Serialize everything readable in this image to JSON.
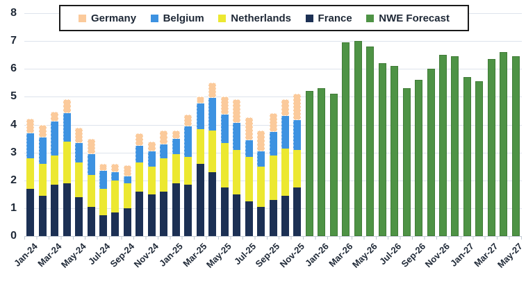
{
  "chart_data": {
    "type": "bar",
    "stacked": true,
    "title": "",
    "xlabel": "",
    "ylabel": "",
    "ylim": [
      0,
      8
    ],
    "yticks": [
      0,
      1,
      2,
      3,
      4,
      5,
      6,
      7,
      8
    ],
    "grid": true,
    "x_labels_every": 2,
    "categories": [
      "Jan-24",
      "Feb-24",
      "Mar-24",
      "Apr-24",
      "May-24",
      "Jun-24",
      "Jul-24",
      "Aug-24",
      "Sep-24",
      "Oct-24",
      "Nov-24",
      "Dec-24",
      "Jan-25",
      "Feb-25",
      "Mar-25",
      "Apr-25",
      "May-25",
      "Jun-25",
      "Jul-25",
      "Aug-25",
      "Sep-25",
      "Oct-25",
      "Nov-25",
      "Dec-25",
      "Jan-26",
      "Feb-26",
      "Mar-26",
      "Apr-26",
      "May-26",
      "Jun-26",
      "Jul-26",
      "Aug-26",
      "Sep-26",
      "Oct-26",
      "Nov-26",
      "Dec-26",
      "Jan-27",
      "Feb-27",
      "Mar-27",
      "Apr-27",
      "May-27"
    ],
    "stack_order_bottom_to_top": [
      "France",
      "Netherlands",
      "Belgium",
      "Germany"
    ],
    "series": [
      {
        "name": "France",
        "color": "#1c3054",
        "values": [
          1.7,
          1.45,
          1.85,
          1.9,
          1.4,
          1.05,
          0.75,
          0.85,
          1.0,
          1.6,
          1.5,
          1.6,
          1.9,
          1.85,
          2.6,
          2.3,
          1.75,
          1.5,
          1.25,
          1.05,
          1.3,
          1.45,
          1.75,
          null,
          null,
          null,
          null,
          null,
          null,
          null,
          null,
          null,
          null,
          null,
          null,
          null,
          null,
          null,
          null,
          null,
          null
        ]
      },
      {
        "name": "Netherlands",
        "color": "#ece831",
        "values": [
          1.1,
          1.15,
          1.05,
          1.5,
          1.25,
          1.15,
          0.95,
          1.15,
          0.9,
          1.05,
          1.0,
          1.2,
          1.05,
          1.0,
          1.25,
          1.5,
          1.6,
          1.6,
          1.6,
          1.45,
          1.6,
          1.7,
          1.35,
          null,
          null,
          null,
          null,
          null,
          null,
          null,
          null,
          null,
          null,
          null,
          null,
          null,
          null,
          null,
          null,
          null,
          null
        ]
      },
      {
        "name": "Belgium",
        "color": "#3d92e1",
        "values": [
          0.9,
          0.95,
          1.2,
          1.0,
          0.7,
          0.75,
          0.65,
          0.3,
          0.25,
          0.6,
          0.55,
          0.5,
          0.55,
          1.1,
          0.9,
          1.15,
          1.0,
          0.95,
          0.6,
          0.55,
          0.85,
          1.15,
          1.05,
          null,
          null,
          null,
          null,
          null,
          null,
          null,
          null,
          null,
          null,
          null,
          null,
          null,
          null,
          null,
          null,
          null,
          null
        ]
      },
      {
        "name": "Germany",
        "color": "#fbca9b",
        "values": [
          0.5,
          0.45,
          0.35,
          0.5,
          0.55,
          0.55,
          0.25,
          0.3,
          0.4,
          0.45,
          0.35,
          0.5,
          0.3,
          0.4,
          0.25,
          0.55,
          0.65,
          0.85,
          0.8,
          0.75,
          0.65,
          0.6,
          0.95,
          null,
          null,
          null,
          null,
          null,
          null,
          null,
          null,
          null,
          null,
          null,
          null,
          null,
          null,
          null,
          null,
          null,
          null
        ]
      },
      {
        "name": "NWE Forecast",
        "color": "#4e9345",
        "values": [
          null,
          null,
          null,
          null,
          null,
          null,
          null,
          null,
          null,
          null,
          null,
          null,
          null,
          null,
          null,
          null,
          null,
          null,
          null,
          null,
          null,
          null,
          null,
          5.2,
          5.3,
          5.1,
          6.95,
          7.0,
          6.8,
          6.2,
          6.1,
          5.3,
          5.6,
          6.0,
          6.5,
          6.45,
          5.7,
          5.55,
          6.35,
          6.6,
          6.45
        ]
      }
    ],
    "legend": {
      "position": "top",
      "entries": [
        "Germany",
        "Belgium",
        "Netherlands",
        "France",
        "NWE Forecast"
      ]
    }
  },
  "colors": {
    "background": "#ffffff",
    "gridline": "#dde3ec",
    "axis": "#c2cad4",
    "text": "#1e2836",
    "legend_border": "#1a1a1a"
  }
}
